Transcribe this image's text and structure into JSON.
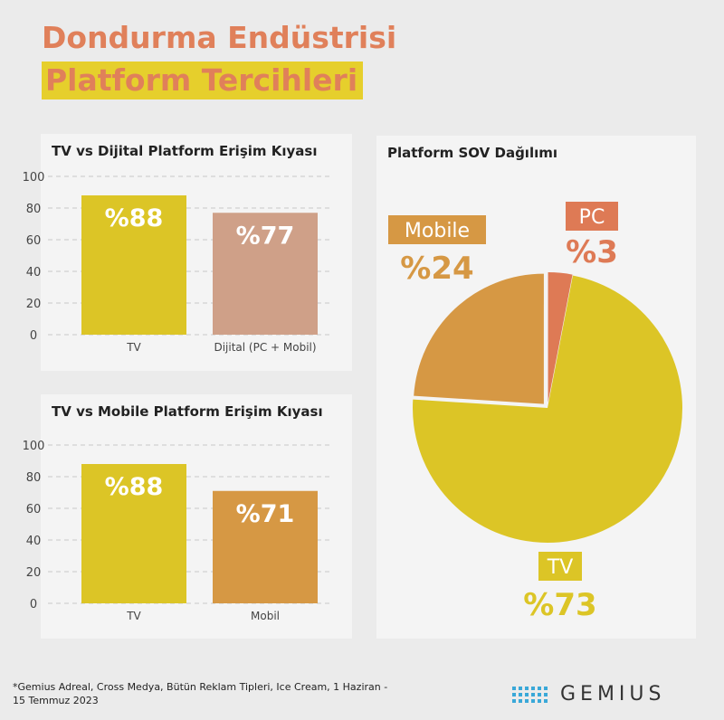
{
  "header": {
    "title_line1": "Dondurma Endüstrisi",
    "title_line2": "Platform Tercihleri"
  },
  "chart_data": [
    {
      "type": "bar",
      "title": "TV vs Dijital Platform Erişim Kıyası",
      "categories": [
        "TV",
        "Dijital (PC + Mobil)"
      ],
      "values": [
        88,
        77
      ],
      "data_labels": [
        "%88",
        "%77"
      ],
      "colors": [
        "#dcc526",
        "#cfa088"
      ],
      "ylim": [
        0,
        100
      ],
      "yticks": [
        "0",
        "20",
        "40",
        "60",
        "80",
        "100"
      ],
      "grid": true
    },
    {
      "type": "bar",
      "title": "TV vs Mobile Platform Erişim Kıyası",
      "categories": [
        "TV",
        "Mobil"
      ],
      "values": [
        88,
        71
      ],
      "data_labels": [
        "%88",
        "%71"
      ],
      "colors": [
        "#dcc526",
        "#d69844"
      ],
      "ylim": [
        0,
        100
      ],
      "yticks": [
        "0",
        "20",
        "40",
        "60",
        "80",
        "100"
      ],
      "grid": true
    },
    {
      "type": "pie",
      "title": "Platform SOV Dağılımı",
      "slices": [
        {
          "name": "TV",
          "value": 73,
          "label": "%73",
          "color": "#dcc526"
        },
        {
          "name": "Mobile",
          "value": 24,
          "label": "%24",
          "color": "#d69844"
        },
        {
          "name": "PC",
          "value": 3,
          "label": "%3",
          "color": "#de7a55"
        }
      ]
    }
  ],
  "footnote": "*Gemius Adreal, Cross Medya, Bütün Reklam Tipleri, Ice Cream, 1 Haziran - 15 Temmuz 2023",
  "logo": {
    "text": "GEMIUS"
  }
}
